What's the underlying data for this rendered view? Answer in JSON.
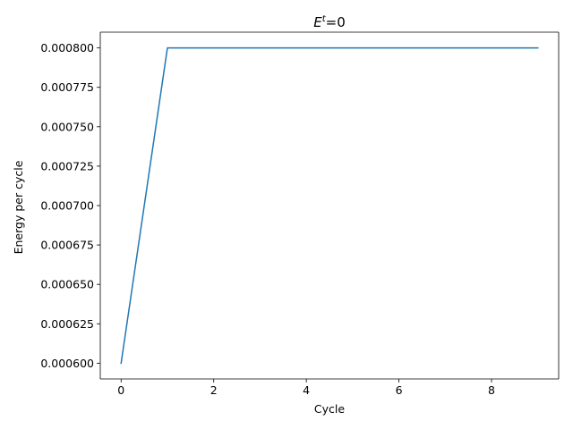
{
  "chart_data": {
    "type": "line",
    "title_base": "E",
    "title_sup": "t",
    "title_rest": "=0",
    "xlabel": "Cycle",
    "ylabel": "Energy per cycle",
    "xlim": [
      -0.45,
      9.45
    ],
    "ylim": [
      0.00059,
      0.00081
    ],
    "xticks": [
      0,
      2,
      4,
      6,
      8
    ],
    "xtick_labels": [
      "0",
      "2",
      "4",
      "6",
      "8"
    ],
    "yticks": [
      0.0006,
      0.000625,
      0.00065,
      0.000675,
      0.0007,
      0.000725,
      0.00075,
      0.000775,
      0.0008
    ],
    "ytick_labels": [
      "0.000600",
      "0.000625",
      "0.000650",
      "0.000675",
      "0.000700",
      "0.000725",
      "0.000750",
      "0.000775",
      "0.000800"
    ],
    "grid": false,
    "series": [
      {
        "color": "#1f77b4",
        "x": [
          0,
          1,
          2,
          3,
          4,
          5,
          6,
          7,
          8,
          9
        ],
        "values": [
          0.0006,
          0.0008,
          0.0008,
          0.0008,
          0.0008,
          0.0008,
          0.0008,
          0.0008,
          0.0008,
          0.0008
        ]
      }
    ]
  }
}
